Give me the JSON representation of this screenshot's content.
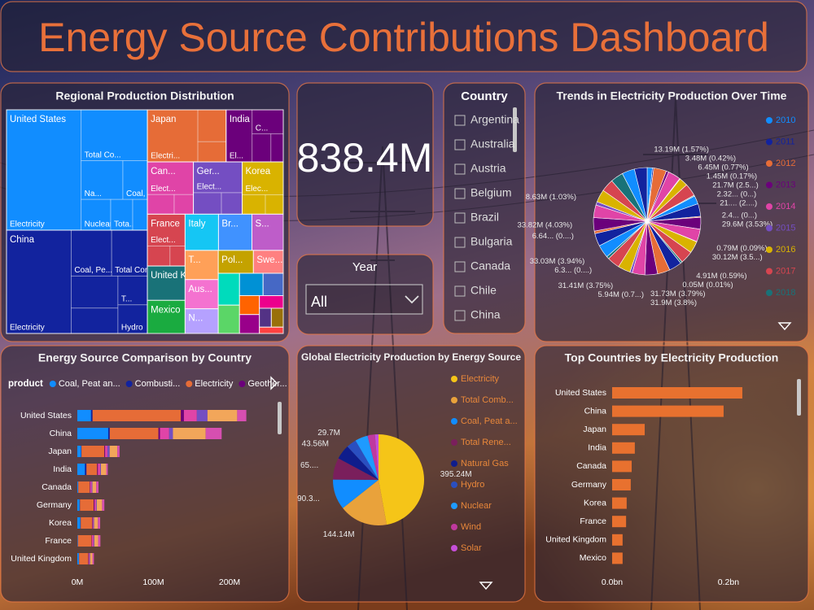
{
  "title": "Energy Source Contributions Dashboard",
  "kpi": "838.4M",
  "year_slicer": {
    "label": "Year",
    "selected": "All"
  },
  "country_slicer": {
    "label": "Country",
    "items": [
      "Argentina",
      "Australia",
      "Austria",
      "Belgium",
      "Brazil",
      "Bulgaria",
      "Canada",
      "Chile",
      "China"
    ]
  },
  "chart_data": [
    {
      "type": "treemap",
      "title": "Regional Production Distribution",
      "categories": [
        "United States",
        "China",
        "Japan",
        "India",
        "Can...",
        "Ger...",
        "Korea",
        "France",
        "United Ki...",
        "Mexico",
        "Italy",
        "Br...",
        "S...",
        "T...",
        "Aus...",
        "N...",
        "Pol...",
        "Swe...",
        null,
        null,
        null,
        null,
        null,
        null,
        null,
        null,
        null,
        null
      ],
      "values": [
        225.6,
        193.6,
        54.6,
        39.6,
        32,
        33.9,
        28.6,
        26,
        17.2,
        16.6,
        16.1,
        16.1,
        15.1,
        12.9,
        12.9,
        10.9,
        10.7,
        9.1,
        9,
        8,
        7,
        6,
        5,
        5,
        4,
        3,
        3,
        2
      ],
      "colors": [
        "#118DFF",
        "#12239E",
        "#E66C37",
        "#6B007B",
        "#E044A7",
        "#744EC2",
        "#D9B300",
        "#D64550",
        "#197278",
        "#1AAB40",
        "#15C6F4",
        "#4092FF",
        "#BE5DC9",
        "#FFA058",
        "#F472D0",
        "#B5A1FF",
        "#C4A200",
        "#FF8080",
        "#00DBBC",
        "#5BD667",
        "#0091D5",
        "#4668C5",
        "#FF6300",
        "#99008A",
        "#EC008C",
        "#533285",
        "#99700A",
        "#FF4141"
      ],
      "children": [
        [
          {
            "name": "Electricity",
            "value": 119.5
          },
          {
            "name": "Total Co...",
            "value": 44.9
          },
          {
            "name": "Na...",
            "value": 21.5
          },
          {
            "name": "Coal, P...",
            "value": 12.6
          },
          {
            "name": "Nuclear",
            "value": 12.1
          },
          {
            "name": "Tota...",
            "value": 9
          },
          {
            "name": null,
            "value": 6
          }
        ],
        [
          {
            "name": "Electricity",
            "value": 88.8
          },
          {
            "name": "Coal, Pe...",
            "value": 24.7
          },
          {
            "name": "Total Combustible ...",
            "value": 21.8
          },
          {
            "name": null,
            "value": 20
          },
          {
            "name": null,
            "value": 15.8
          },
          {
            "name": "T...",
            "value": 11.3
          },
          {
            "name": "Hydro",
            "value": 11.2
          }
        ],
        [
          {
            "name": "Electri...",
            "value": 35
          },
          {
            "name": null,
            "value": 12
          },
          {
            "name": null,
            "value": 7.6
          }
        ],
        [
          {
            "name": "El...",
            "value": 18
          },
          {
            "name": "C...",
            "value": 10
          },
          {
            "name": null,
            "value": 7
          },
          {
            "name": null,
            "value": 4.6
          }
        ],
        [
          {
            "name": "Elect...",
            "value": 20
          },
          {
            "name": null,
            "value": 7
          },
          {
            "name": null,
            "value": 5
          }
        ],
        [
          {
            "name": "Elect...",
            "value": 20
          },
          {
            "name": null,
            "value": 8
          },
          {
            "name": null,
            "value": 5.9
          }
        ],
        [
          {
            "name": "Elec...",
            "value": 18
          },
          {
            "name": null,
            "value": 6
          },
          {
            "name": null,
            "value": 4.6
          }
        ],
        [
          {
            "name": "Elect...",
            "value": 16
          },
          {
            "name": null,
            "value": 6
          },
          {
            "name": null,
            "value": 4
          }
        ],
        [],
        [],
        [],
        [],
        [],
        [],
        [],
        [],
        [],
        [],
        [],
        [],
        [],
        [],
        [],
        [],
        [],
        [],
        [],
        []
      ]
    },
    {
      "type": "pie",
      "title": "Trends in Electricity Production Over Time",
      "values": [
        13.19,
        3.48,
        32,
        6.45,
        32,
        1.45,
        21.7,
        32,
        2.32,
        21,
        32,
        2.4,
        29.6,
        32,
        0.79,
        30.12,
        32,
        4.91,
        0.05,
        32,
        31.73,
        31.9,
        32,
        5.94,
        31.41,
        32,
        6.3,
        33.03,
        32,
        6.64,
        33.82,
        32,
        8.63,
        32,
        32,
        32,
        32,
        32
      ],
      "value_labels": [
        "13.19M (1.57%)",
        "3.48M (0.42%)",
        null,
        "6.45M (0.77%)",
        null,
        "1.45M (0.17%)",
        "21.7M (2.5...)",
        null,
        "2.32... (0...)",
        "21.... (2....)",
        null,
        "2.4... (0...)",
        "29.6M (3.53%)",
        null,
        "0.79M (0.09%)",
        "30.12M (3.5...)",
        null,
        "4.91M (0.59%)",
        "0.05M (0.01%)",
        null,
        "31.73M (3.79%)",
        "31.9M (3.8%)",
        null,
        "5.94M (0.7...)",
        "31.41M (3.75%)",
        null,
        "6.3... (0....)",
        "33.03M (3.94%)",
        null,
        "6.64... (0....)",
        "33.82M (4.03%)",
        null,
        "8.63M (1.03%)",
        null,
        null,
        null,
        null,
        null
      ],
      "legend_items": [
        {
          "name": "2010",
          "color": "#118DFF"
        },
        {
          "name": "2011",
          "color": "#12239E"
        },
        {
          "name": "2012",
          "color": "#E66C37"
        },
        {
          "name": "2013",
          "color": "#6B007B"
        },
        {
          "name": "2014",
          "color": "#E044A7"
        },
        {
          "name": "2015",
          "color": "#744EC2"
        },
        {
          "name": "2016",
          "color": "#D9B300"
        },
        {
          "name": "2017",
          "color": "#D64550"
        },
        {
          "name": "2018",
          "color": "#197278"
        }
      ],
      "legend": "right"
    },
    {
      "type": "stacked_bar",
      "title": "Energy Source Comparison by Country",
      "legend_title": "product",
      "categories": [
        "United States",
        "China",
        "Japan",
        "India",
        "Canada",
        "Germany",
        "Korea",
        "France",
        "United Kingdom"
      ],
      "series": [
        {
          "name": "Coal, Peat an...",
          "color": "#118DFF",
          "values": [
            18,
            40.6,
            5,
            10,
            1,
            3,
            4,
            0.5,
            2
          ]
        },
        {
          "name": "Combusti...",
          "color": "#12239E",
          "values": [
            2,
            2,
            0.5,
            2,
            0.3,
            0.5,
            0.5,
            0.3,
            0.3
          ]
        },
        {
          "name": "Electricity",
          "color": "#E66C37",
          "values": [
            116,
            64,
            30,
            14,
            15,
            18,
            15,
            18,
            12
          ]
        },
        {
          "name": "Geother...",
          "color": "#6B007B",
          "values": [
            4,
            2,
            1,
            1,
            0.5,
            1,
            0.5,
            0.5,
            0.5
          ]
        },
        {
          "name": null,
          "color": "#E044A7",
          "values": [
            17,
            12,
            3,
            3,
            2,
            2,
            1,
            2,
            1
          ]
        },
        {
          "name": null,
          "color": "#744EC2",
          "values": [
            14,
            5,
            3,
            1,
            1,
            1,
            1,
            1,
            1
          ]
        },
        {
          "name": null,
          "color": "#F2A65A",
          "values": [
            39,
            43,
            10,
            7,
            5,
            7,
            5,
            5,
            3
          ]
        },
        {
          "name": null,
          "color": "#D64FB0",
          "values": [
            12,
            21,
            3,
            2,
            3,
            3,
            3,
            3,
            2
          ]
        }
      ],
      "xlim": [
        0,
        262
      ],
      "xticks": [
        {
          "value": 0,
          "label": "0M"
        },
        {
          "value": 100,
          "label": "100M"
        },
        {
          "value": 200,
          "label": "200M"
        }
      ],
      "legend": "top"
    },
    {
      "type": "pie",
      "title": "Global Electricity Production by Energy Source",
      "values": [
        395.24,
        144.14,
        90.3,
        65,
        43.56,
        29.7,
        38,
        22,
        10.5
      ],
      "value_labels": [
        "395.24M",
        "144.14M",
        "90.3...",
        "65....",
        "43.56M",
        "29.7M",
        null,
        null,
        null
      ],
      "legend_items": [
        {
          "name": "Electricity",
          "color": "#F5C518"
        },
        {
          "name": "Total Comb...",
          "color": "#E9A23B"
        },
        {
          "name": "Coal, Peat a...",
          "color": "#118DFF"
        },
        {
          "name": "Total Rene...",
          "color": "#7A1F5C"
        },
        {
          "name": "Natural Gas",
          "color": "#0F1D8C"
        },
        {
          "name": "Hydro",
          "color": "#2A4FC0"
        },
        {
          "name": "Nuclear",
          "color": "#1E9BFF"
        },
        {
          "name": "Wind",
          "color": "#C0399E"
        },
        {
          "name": "Solar",
          "color": "#C64FD8"
        }
      ],
      "legend": "right"
    },
    {
      "type": "bar",
      "title": "Top Countries by Electricity Production",
      "categories": [
        "United States",
        "China",
        "Japan",
        "India",
        "Canada",
        "Germany",
        "Korea",
        "France",
        "United Kingdom",
        "Mexico"
      ],
      "values": [
        0.2238,
        0.1916,
        0.056,
        0.039,
        0.0336,
        0.032,
        0.025,
        0.024,
        0.018,
        0.018
      ],
      "color": "#E8712F",
      "xlim": [
        0,
        0.319
      ],
      "xticks": [
        {
          "value": 0,
          "label": "0.0bn"
        },
        {
          "value": 0.2,
          "label": "0.2bn"
        }
      ]
    }
  ]
}
